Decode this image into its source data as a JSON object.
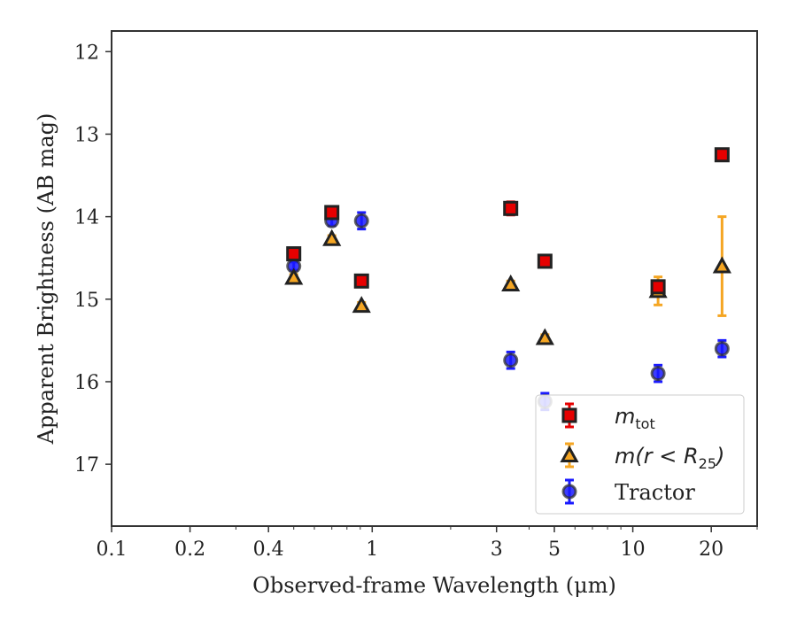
{
  "chart_data": {
    "type": "scatter",
    "xlabel": "Observed-frame Wavelength (μm)",
    "ylabel": "Apparent Brightness (AB mag)",
    "xscale": "log",
    "xlim": [
      0.1,
      30
    ],
    "ylim": [
      17.75,
      11.75
    ],
    "y_inverted": true,
    "grid": false,
    "legend_position": "lower-right",
    "x_ticks": [
      {
        "value": 0.1,
        "label": "0.1"
      },
      {
        "value": 0.2,
        "label": "0.2"
      },
      {
        "value": 0.4,
        "label": "0.4"
      },
      {
        "value": 1,
        "label": "1"
      },
      {
        "value": 3,
        "label": "3"
      },
      {
        "value": 5,
        "label": "5"
      },
      {
        "value": 10,
        "label": "10"
      },
      {
        "value": 20,
        "label": "20"
      }
    ],
    "y_ticks": [
      {
        "value": 12,
        "label": "12"
      },
      {
        "value": 13,
        "label": "13"
      },
      {
        "value": 14,
        "label": "14"
      },
      {
        "value": 15,
        "label": "15"
      },
      {
        "value": 16,
        "label": "16"
      },
      {
        "value": 17,
        "label": "17"
      }
    ],
    "series": [
      {
        "name": "m_tot",
        "legend_main": "m",
        "legend_sub": "tot",
        "marker": "square",
        "color": "#e60000",
        "errcolor": "#e60000",
        "points": [
          {
            "x": 0.5,
            "y": 14.45,
            "err": 0.05
          },
          {
            "x": 0.7,
            "y": 13.95,
            "err": 0.05
          },
          {
            "x": 0.91,
            "y": 14.78,
            "err": 0.04
          },
          {
            "x": 3.4,
            "y": 13.9,
            "err": 0.08
          },
          {
            "x": 4.6,
            "y": 14.54,
            "err": 0.05
          },
          {
            "x": 12.5,
            "y": 14.85,
            "err": 0.07
          },
          {
            "x": 22.0,
            "y": 13.25,
            "err": 0.05
          }
        ]
      },
      {
        "name": "m(r < R25)",
        "legend_main": "m(r < R",
        "legend_sub": "25",
        "legend_end": ")",
        "marker": "triangle",
        "color": "#f5a623",
        "errcolor": "#f5a623",
        "points": [
          {
            "x": 0.5,
            "y": 14.74,
            "err": 0.04
          },
          {
            "x": 0.7,
            "y": 14.27,
            "err": 0.04
          },
          {
            "x": 0.91,
            "y": 15.08,
            "err": 0.04
          },
          {
            "x": 3.4,
            "y": 14.82,
            "err": 0.04
          },
          {
            "x": 4.6,
            "y": 15.47,
            "err": 0.04
          },
          {
            "x": 12.5,
            "y": 14.9,
            "err": 0.17
          },
          {
            "x": 22.0,
            "y": 14.6,
            "err": 0.6
          }
        ]
      },
      {
        "name": "Tractor",
        "legend_main": "Tractor",
        "marker": "circle",
        "color": "#1a1aff",
        "errcolor": "#1a1aff",
        "points": [
          {
            "x": 0.5,
            "y": 14.6,
            "err": 0.05
          },
          {
            "x": 0.7,
            "y": 14.05,
            "err": 0.06
          },
          {
            "x": 0.91,
            "y": 14.05,
            "err": 0.1
          },
          {
            "x": 3.4,
            "y": 15.74,
            "err": 0.1
          },
          {
            "x": 4.6,
            "y": 16.24,
            "err": 0.1
          },
          {
            "x": 12.5,
            "y": 15.9,
            "err": 0.1
          },
          {
            "x": 22.0,
            "y": 15.6,
            "err": 0.1
          }
        ]
      }
    ]
  }
}
